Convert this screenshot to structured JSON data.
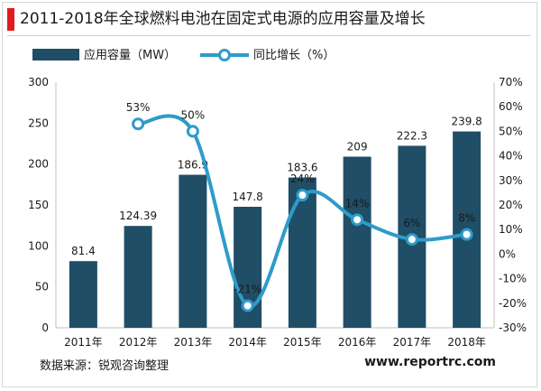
{
  "title": "2011-2018年全球燃料电池在固定式电源的应用容量及增长",
  "source": "数据来源：锐观咨询整理",
  "website": "www.reportrc.com",
  "colors": {
    "bar": "#1f4e66",
    "line": "#2e9bc9",
    "accent": "#e11b22"
  },
  "chart_data": {
    "type": "bar",
    "categories": [
      "2011年",
      "2012年",
      "2013年",
      "2014年",
      "2015年",
      "2016年",
      "2017年",
      "2018年"
    ],
    "series": [
      {
        "name": "应用容量（MW）",
        "type": "bar",
        "axis": "left",
        "values": [
          81.4,
          124.39,
          186.9,
          147.8,
          183.6,
          209,
          222.3,
          239.8
        ],
        "labels": [
          "81.4",
          "124.39",
          "186.9",
          "147.8",
          "183.6",
          "209",
          "222.3",
          "239.8"
        ]
      },
      {
        "name": "同比增长（%）",
        "type": "line",
        "axis": "right",
        "values": [
          null,
          53,
          50,
          -21,
          24,
          14,
          6,
          8
        ],
        "labels": [
          "",
          "53%",
          "50%",
          "-21%",
          "24%",
          "14%",
          "6%",
          "8%"
        ]
      }
    ],
    "ylim_left": [
      0,
      300
    ],
    "yticks_left": [
      "0",
      "50",
      "100",
      "150",
      "200",
      "250",
      "300"
    ],
    "ylim_right": [
      -30,
      70
    ],
    "yticks_right": [
      "-30%",
      "-20%",
      "-10%",
      "0%",
      "10%",
      "20%",
      "30%",
      "40%",
      "50%",
      "60%",
      "70%"
    ],
    "legend_position": "top-left",
    "grid": false
  }
}
